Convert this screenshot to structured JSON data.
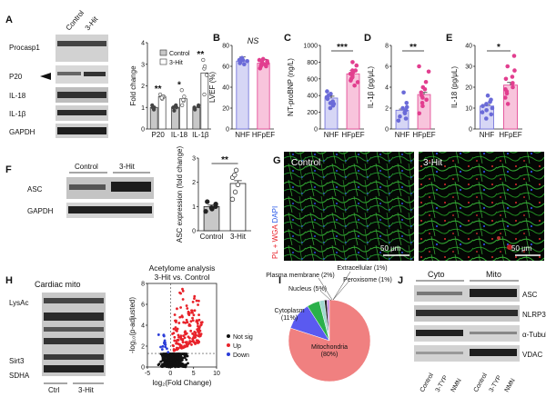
{
  "panel_letters": {
    "A": "A",
    "B": "B",
    "C": "C",
    "D": "D",
    "E": "E",
    "F": "F",
    "G": "G",
    "H": "H",
    "I": "I",
    "J": "J"
  },
  "panelA": {
    "col_labels": [
      "Control",
      "3-Hit"
    ],
    "blot_labels": [
      "Procasp1",
      "P20",
      "IL-18",
      "IL-1β",
      "GAPDH"
    ]
  },
  "panelF": {
    "col_labels": [
      "Control",
      "3-Hit"
    ],
    "blot_labels": [
      "ASC",
      "GAPDH"
    ]
  },
  "panelG": {
    "side_label_1": "PL + WGA",
    "side_label_2": " DAPI",
    "left_title": "Control",
    "right_title": "3-Hit",
    "scale_left": "50 μm",
    "scale_right": "50 μm"
  },
  "panelH": {
    "title": "Cardiac mito",
    "blot_labels": [
      "LysAc",
      "Sirt3",
      "SDHA"
    ],
    "col_labels": [
      "Ctrl",
      "3-Hit"
    ]
  },
  "panelJ": {
    "group_labels": [
      "Cyto",
      "Mito"
    ],
    "blot_labels": [
      "ASC",
      "NLRP3",
      "α-Tubulin",
      "VDAC"
    ],
    "col_labels": [
      "Control",
      "3-TYP",
      "NMN",
      "Control",
      "3-TYP",
      "NMN"
    ]
  },
  "chart_data": [
    {
      "id": "A-quant",
      "type": "bar",
      "ylabel": "Fold change",
      "ylim": [
        0,
        4
      ],
      "yticks": [
        0,
        1,
        2,
        3,
        4
      ],
      "categories": [
        "P20",
        "IL-18",
        "IL-1β"
      ],
      "series": [
        {
          "name": "Control",
          "color": "#c8c8c8",
          "values": [
            1.0,
            1.0,
            1.0
          ],
          "points": [
            [
              0.9,
              1.0,
              1.1,
              1.0,
              0.95
            ],
            [
              0.85,
              1.0,
              1.1,
              1.0,
              1.05
            ],
            [
              0.9,
              1.0,
              1.05,
              1.1,
              0.95
            ]
          ]
        },
        {
          "name": "3-Hit",
          "color": "#ffffff",
          "values": [
            1.5,
            1.4,
            2.6
          ],
          "points": [
            [
              1.4,
              1.6,
              1.5,
              1.5,
              1.45
            ],
            [
              1.1,
              1.5,
              1.8,
              1.3,
              1.35
            ],
            [
              1.6,
              2.5,
              3.2,
              2.8,
              2.9
            ]
          ]
        }
      ],
      "significance": [
        "**",
        "*",
        "**"
      ],
      "legend": "top-right"
    },
    {
      "id": "B",
      "type": "bar",
      "ylabel": "LVEF (%)",
      "ylim": [
        0,
        80
      ],
      "yticks": [
        0,
        20,
        40,
        60,
        80
      ],
      "categories": [
        "NHF",
        "HFpEF"
      ],
      "values": [
        65,
        63
      ],
      "colors": [
        "#6a6ad8",
        "#e23e8f"
      ],
      "fills": [
        "#d6d6f5",
        "#f8c4dc"
      ],
      "points": [
        [
          62,
          64,
          66,
          65,
          68,
          63,
          66,
          67
        ],
        [
          58,
          60,
          62,
          64,
          66,
          63,
          61,
          65,
          67,
          60,
          62
        ]
      ],
      "significance": "NS"
    },
    {
      "id": "C",
      "type": "bar",
      "ylabel": "NT-proBNP (ng/L)",
      "ylim": [
        0,
        1000
      ],
      "yticks": [
        0,
        200,
        400,
        600,
        800,
        1000
      ],
      "categories": [
        "NHF",
        "HFpEF"
      ],
      "values": [
        370,
        660
      ],
      "colors": [
        "#6a6ad8",
        "#e23e8f"
      ],
      "fills": [
        "#d6d6f5",
        "#f8c4dc"
      ],
      "points": [
        [
          250,
          300,
          330,
          360,
          400,
          420,
          450,
          380,
          310,
          280
        ],
        [
          520,
          560,
          600,
          640,
          680,
          700,
          760,
          800,
          620,
          580,
          660,
          700
        ]
      ],
      "significance": "***"
    },
    {
      "id": "D",
      "type": "bar",
      "ylabel": "IL-1β (pg/μL)",
      "ylim": [
        0,
        8
      ],
      "yticks": [
        0,
        2,
        4,
        6,
        8
      ],
      "categories": [
        "NHF",
        "HFpEF"
      ],
      "values": [
        1.8,
        3.3
      ],
      "colors": [
        "#6a6ad8",
        "#e23e8f"
      ],
      "fills": [
        "#d6d6f5",
        "#f8c4dc"
      ],
      "points": [
        [
          0.8,
          1.2,
          1.5,
          1.8,
          2.1,
          2.5,
          1.0,
          1.6,
          3.5,
          2.0
        ],
        [
          1.5,
          2.5,
          3.0,
          3.5,
          4.0,
          4.5,
          2.8,
          3.2,
          5.5,
          6.0,
          2.2,
          3.8
        ]
      ],
      "significance": "**"
    },
    {
      "id": "E",
      "type": "bar",
      "ylabel": "IL-18 (pg/μL)",
      "ylim": [
        0,
        40
      ],
      "yticks": [
        0,
        10,
        20,
        30,
        40
      ],
      "categories": [
        "NHF",
        "HFpEF"
      ],
      "values": [
        11,
        21
      ],
      "colors": [
        "#6a6ad8",
        "#e23e8f"
      ],
      "fills": [
        "#d6d6f5",
        "#f8c4dc"
      ],
      "points": [
        [
          5,
          8,
          10,
          12,
          14,
          16,
          9,
          11,
          13,
          7
        ],
        [
          12,
          15,
          18,
          20,
          22,
          25,
          28,
          30,
          35,
          17,
          19,
          24
        ]
      ],
      "significance": "*"
    },
    {
      "id": "F-quant",
      "type": "bar",
      "ylabel": "ASC expression (fold change)",
      "ylim": [
        0,
        3
      ],
      "yticks": [
        0,
        1,
        2,
        3
      ],
      "categories": [
        "Control",
        "3-Hit"
      ],
      "values": [
        1.0,
        1.95
      ],
      "colors": [
        "#222222",
        "#222222"
      ],
      "fills": [
        "#c8c8c8",
        "#ffffff"
      ],
      "points": [
        [
          0.8,
          0.9,
          1.0,
          1.1,
          1.2,
          0.95
        ],
        [
          1.3,
          1.6,
          1.9,
          2.2,
          2.5,
          2.3
        ]
      ],
      "significance": "**"
    },
    {
      "id": "H-volcano",
      "type": "scatter",
      "title": "Acetylome analysis 3-Hit vs. Control",
      "xlabel": "log₂(Fold Change)",
      "ylabel": "-log₁₀(p-adjusted)",
      "xlim": [
        -5,
        10
      ],
      "ylim": [
        0,
        8
      ],
      "xticks": [
        -5,
        0,
        5,
        10
      ],
      "yticks": [
        0,
        2,
        4,
        6,
        8
      ],
      "legend": [
        "Not sig",
        "Up",
        "Down"
      ],
      "legend_colors": [
        "#111111",
        "#e8222a",
        "#2a3cd8"
      ]
    },
    {
      "id": "I",
      "type": "pie",
      "labels": [
        "Mitochondria (80%)",
        "Cytoplasm (11%)",
        "Nucleus (5%)",
        "Plasma membrane (2%)",
        "Extracellular (1%)",
        "Peroxisome (1%)"
      ],
      "values": [
        80,
        11,
        5,
        2,
        1,
        1
      ],
      "colors": [
        "#f08080",
        "#5a5af0",
        "#2ab04a",
        "#a0d8d0",
        "#222222",
        "#c080e0"
      ]
    }
  ]
}
